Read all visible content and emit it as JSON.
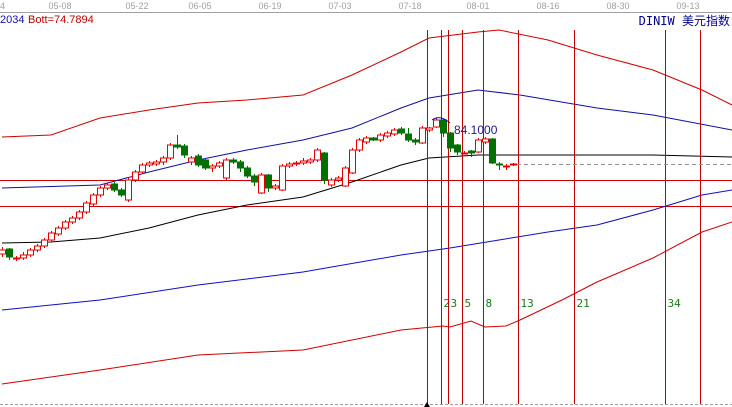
{
  "header": {
    "left_value": "2034",
    "bott_label": "Bott=74.7894",
    "symbol": "DINIW",
    "symbol_name": "美元指数"
  },
  "colors": {
    "up": "#e00000",
    "down": "#007000",
    "upper_band": "#d00000",
    "mid_upper": "#1010a0",
    "middle": "#000000",
    "mid_lower": "#1010c0",
    "lower_band": "#d00000",
    "fib_line": "#c00000",
    "hline": "#d00000"
  },
  "chart_data": {
    "type": "candlestick",
    "x_tick_labels": [
      "4",
      "05-08",
      "05-22",
      "06-05",
      "06-19",
      "07-03",
      "07-18",
      "08-01",
      "08-16",
      "08-30",
      "09-13"
    ],
    "price_label": "84.1000",
    "candles": [
      [
        77.5,
        77.85,
        77.35,
        77.7
      ],
      [
        77.75,
        77.8,
        77.2,
        77.35
      ],
      [
        77.3,
        77.4,
        77.15,
        77.3
      ],
      [
        77.3,
        77.6,
        77.2,
        77.45
      ],
      [
        77.45,
        77.8,
        77.35,
        77.7
      ],
      [
        77.7,
        78.0,
        77.6,
        77.9
      ],
      [
        77.9,
        78.3,
        77.8,
        78.2
      ],
      [
        78.2,
        78.65,
        78.1,
        78.55
      ],
      [
        78.5,
        78.9,
        78.4,
        78.8
      ],
      [
        78.8,
        79.2,
        78.7,
        79.1
      ],
      [
        79.1,
        79.4,
        79.0,
        79.3
      ],
      [
        79.3,
        79.7,
        79.2,
        79.6
      ],
      [
        79.6,
        80.15,
        79.5,
        80.05
      ],
      [
        80.0,
        80.55,
        79.9,
        80.45
      ],
      [
        80.45,
        80.9,
        80.35,
        80.8
      ],
      [
        80.8,
        81.05,
        80.7,
        80.95
      ],
      [
        81.0,
        81.1,
        80.6,
        80.7
      ],
      [
        80.7,
        80.8,
        80.35,
        80.45
      ],
      [
        80.2,
        81.3,
        80.1,
        81.2
      ],
      [
        81.2,
        81.7,
        81.1,
        81.6
      ],
      [
        81.6,
        82.05,
        81.5,
        81.95
      ],
      [
        81.95,
        82.15,
        81.85,
        82.05
      ],
      [
        82.0,
        82.2,
        81.9,
        82.1
      ],
      [
        82.1,
        82.4,
        81.95,
        82.3
      ],
      [
        82.3,
        83.05,
        82.2,
        82.95
      ],
      [
        82.95,
        83.45,
        82.75,
        82.85
      ],
      [
        82.9,
        83.0,
        82.3,
        82.45
      ],
      [
        82.1,
        82.4,
        81.95,
        82.3
      ],
      [
        82.4,
        82.5,
        81.85,
        81.95
      ],
      [
        82.2,
        82.3,
        81.7,
        81.8
      ],
      [
        81.8,
        82.0,
        81.6,
        81.9
      ],
      [
        81.9,
        82.15,
        81.8,
        82.05
      ],
      [
        81.3,
        82.3,
        81.2,
        82.2
      ],
      [
        82.2,
        82.3,
        82.0,
        82.1
      ],
      [
        82.1,
        82.2,
        81.6,
        81.8
      ],
      [
        81.8,
        81.9,
        81.3,
        81.4
      ],
      [
        81.4,
        81.5,
        80.9,
        81.1
      ],
      [
        80.55,
        81.55,
        80.5,
        81.45
      ],
      [
        81.45,
        81.5,
        80.6,
        80.8
      ],
      [
        80.8,
        81.0,
        80.7,
        80.9
      ],
      [
        80.7,
        82.0,
        80.65,
        81.9
      ],
      [
        81.9,
        82.1,
        81.8,
        82.0
      ],
      [
        82.0,
        82.15,
        81.9,
        82.05
      ],
      [
        82.05,
        82.3,
        81.95,
        82.15
      ],
      [
        82.1,
        82.3,
        82.0,
        82.2
      ],
      [
        82.2,
        82.8,
        82.1,
        82.7
      ],
      [
        82.55,
        82.6,
        81.0,
        81.2
      ],
      [
        80.95,
        81.3,
        80.85,
        81.2
      ],
      [
        81.2,
        81.4,
        81.1,
        81.3
      ],
      [
        80.9,
        81.9,
        80.85,
        81.8
      ],
      [
        81.55,
        82.8,
        81.5,
        82.7
      ],
      [
        82.7,
        83.3,
        82.6,
        83.2
      ],
      [
        83.1,
        83.4,
        83.0,
        83.3
      ],
      [
        83.3,
        83.35,
        83.15,
        83.2
      ],
      [
        83.2,
        83.55,
        83.1,
        83.45
      ],
      [
        83.4,
        83.65,
        83.3,
        83.55
      ],
      [
        83.5,
        83.8,
        83.4,
        83.7
      ],
      [
        83.75,
        83.85,
        83.45,
        83.55
      ],
      [
        83.5,
        83.8,
        83.1,
        83.2
      ],
      [
        83.2,
        83.3,
        82.95,
        83.1
      ],
      [
        83.05,
        83.9,
        83.0,
        83.8
      ],
      [
        83.7,
        83.85,
        83.6,
        83.8
      ],
      [
        83.85,
        84.3,
        83.8,
        84.2
      ],
      [
        84.2,
        84.25,
        83.35,
        83.55
      ],
      [
        83.55,
        83.6,
        82.6,
        82.8
      ],
      [
        82.95,
        83.0,
        82.45,
        82.6
      ],
      [
        82.55,
        82.65,
        82.5,
        82.55
      ],
      [
        82.65,
        82.7,
        82.35,
        82.55
      ],
      [
        82.6,
        83.3,
        82.55,
        83.2
      ],
      [
        83.1,
        83.35,
        83.0,
        83.25
      ],
      [
        83.25,
        83.3,
        82.0,
        82.05
      ],
      [
        82.0,
        82.1,
        81.7,
        81.95
      ],
      [
        81.9,
        82.0,
        81.7,
        81.9
      ],
      [
        81.95,
        82.05,
        81.9,
        82.0
      ]
    ],
    "bands": [
      {
        "key": "upper_band",
        "points": [
          [
            0,
            83.35
          ],
          [
            7,
            83.45
          ],
          [
            14,
            84.3
          ],
          [
            21,
            84.7
          ],
          [
            28,
            85.05
          ],
          [
            35,
            85.2
          ],
          [
            43,
            85.45
          ],
          [
            50,
            86.45
          ],
          [
            57,
            87.6
          ],
          [
            61,
            88.3
          ],
          [
            68,
            88.6
          ],
          [
            71,
            88.7
          ],
          [
            78,
            88.2
          ],
          [
            85,
            87.45
          ],
          [
            93,
            86.7
          ],
          [
            100,
            85.7
          ],
          [
            104.3,
            84.95
          ]
        ]
      },
      {
        "key": "mid_upper",
        "points": [
          [
            0,
            80.8
          ],
          [
            14,
            80.95
          ],
          [
            21,
            81.6
          ],
          [
            28,
            82.2
          ],
          [
            35,
            82.7
          ],
          [
            43,
            83.2
          ],
          [
            50,
            83.8
          ],
          [
            57,
            84.8
          ],
          [
            61,
            85.3
          ],
          [
            68,
            85.7
          ],
          [
            74,
            85.45
          ],
          [
            85,
            84.8
          ],
          [
            93,
            84.45
          ],
          [
            104.3,
            83.7
          ]
        ]
      },
      {
        "key": "middle",
        "points": [
          [
            0,
            78.05
          ],
          [
            7,
            78.1
          ],
          [
            14,
            78.3
          ],
          [
            21,
            78.8
          ],
          [
            28,
            79.45
          ],
          [
            35,
            79.95
          ],
          [
            43,
            80.35
          ],
          [
            50,
            81.1
          ],
          [
            57,
            81.95
          ],
          [
            61,
            82.3
          ],
          [
            68,
            82.45
          ],
          [
            78,
            82.45
          ],
          [
            93,
            82.45
          ],
          [
            104.3,
            82.35
          ]
        ]
      },
      {
        "key": "mid_lower",
        "points": [
          [
            0,
            74.7
          ],
          [
            14,
            75.2
          ],
          [
            28,
            75.95
          ],
          [
            43,
            76.6
          ],
          [
            57,
            77.45
          ],
          [
            64,
            77.8
          ],
          [
            71,
            78.2
          ],
          [
            78,
            78.6
          ],
          [
            85,
            78.95
          ],
          [
            93,
            79.7
          ],
          [
            100,
            80.45
          ],
          [
            104.3,
            80.7
          ]
        ]
      },
      {
        "key": "lower_band",
        "points": [
          [
            0,
            71.0
          ],
          [
            14,
            71.7
          ],
          [
            28,
            72.45
          ],
          [
            43,
            72.7
          ],
          [
            57,
            73.7
          ],
          [
            60,
            73.8
          ],
          [
            63,
            73.9
          ],
          [
            64,
            73.85
          ],
          [
            67,
            74.15
          ],
          [
            69,
            73.85
          ],
          [
            72,
            73.9
          ],
          [
            74,
            74.2
          ],
          [
            80,
            75.2
          ],
          [
            85,
            76.1
          ],
          [
            93,
            77.3
          ],
          [
            100,
            78.6
          ],
          [
            104.3,
            79.1
          ]
        ]
      }
    ],
    "horizontal_lines": [
      81.2,
      79.9
    ],
    "last_price": 82.0,
    "fib_time_lines": [
      {
        "index": 60.7,
        "label": ""
      },
      {
        "index": 62.7,
        "label": "2"
      },
      {
        "index": 63.7,
        "label": "3"
      },
      {
        "index": 65.7,
        "label": "5"
      },
      {
        "index": 68.7,
        "label": "8"
      },
      {
        "index": 73.7,
        "label": "13"
      },
      {
        "index": 81.7,
        "label": "21"
      },
      {
        "index": 94.7,
        "label": "34"
      },
      {
        "index": 99.7,
        "label": ""
      }
    ]
  }
}
